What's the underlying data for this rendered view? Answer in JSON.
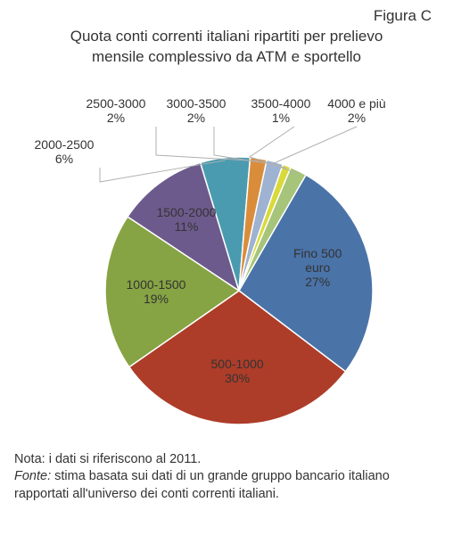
{
  "figure_label": "Figura C",
  "title_line1": "Quota conti correnti italiani ripartiti per prelievo",
  "title_line2": "mensile complessivo da ATM e sportello",
  "chart": {
    "type": "pie",
    "start_angle_deg": -60,
    "background_color": "#ffffff",
    "slice_border_color": "#ffffff",
    "slice_border_width": 1.5,
    "leader_color": "#b0b0b0",
    "label_fontsize": 14,
    "label_color": "#333333",
    "slices": [
      {
        "name": "Fino 500 euro",
        "value": 27,
        "color": "#4a73a8",
        "label_lines": [
          "Fino 500",
          "euro",
          "27%"
        ],
        "label_mode": "inside"
      },
      {
        "name": "500-1000",
        "value": 30,
        "color": "#ad3d29",
        "label_lines": [
          "500-1000",
          "30%"
        ],
        "label_mode": "inside"
      },
      {
        "name": "1000-1500",
        "value": 19,
        "color": "#86a443",
        "label_lines": [
          "1000-1500",
          "19%"
        ],
        "label_mode": "inside"
      },
      {
        "name": "1500-2000",
        "value": 11,
        "color": "#6d5a8c",
        "label_lines": [
          "1500-2000",
          "11%"
        ],
        "label_mode": "inside"
      },
      {
        "name": "2000-2500",
        "value": 6,
        "color": "#4a9bb0",
        "label_lines": [
          "2000-2500",
          "6%"
        ],
        "label_mode": "outside"
      },
      {
        "name": "2500-3000",
        "value": 2,
        "color": "#d98d3a",
        "label_lines": [
          "2500-3000",
          "2%"
        ],
        "label_mode": "outside"
      },
      {
        "name": "3000-3500",
        "value": 2,
        "color": "#9eb2d1",
        "label_lines": [
          "3000-3500",
          "2%"
        ],
        "label_mode": "outside"
      },
      {
        "name": "3500-4000",
        "value": 1,
        "color": "#d9d93a",
        "label_lines": [
          "3500-4000",
          "1%"
        ],
        "label_mode": "outside"
      },
      {
        "name": "4000 e più",
        "value": 2,
        "color": "#a6c47a",
        "label_lines": [
          "4000 e più",
          "2%"
        ],
        "label_mode": "outside"
      }
    ]
  },
  "note_prefix": "Nota: ",
  "note_text": "i dati si riferiscono al 2011.",
  "source_prefix": "Fonte: ",
  "source_text": "stima basata sui dati di un grande gruppo bancario italiano rapportati all'universo dei conti correnti italiani."
}
